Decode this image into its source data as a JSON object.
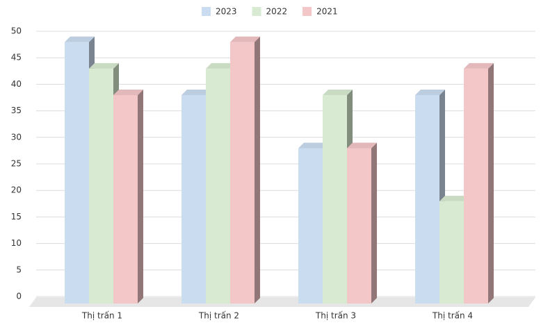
{
  "chart_data": {
    "type": "bar3d",
    "categories": [
      "Thị trấn 1",
      "Thị trấn 2",
      "Thị trấn 3",
      "Thị trấn 4"
    ],
    "series": [
      {
        "name": "2023",
        "color": "#c9dcf0",
        "values": [
          49,
          39,
          29,
          39
        ]
      },
      {
        "name": "2022",
        "color": "#d8ebd2",
        "values": [
          44,
          44,
          39,
          19
        ]
      },
      {
        "name": "2021",
        "color": "#f3c6c8",
        "values": [
          39,
          49,
          29,
          44
        ]
      }
    ],
    "ylim": [
      0,
      50
    ],
    "yticks": [
      0,
      5,
      10,
      15,
      20,
      25,
      30,
      35,
      40,
      45,
      50
    ],
    "grid": true,
    "legend": "top"
  }
}
